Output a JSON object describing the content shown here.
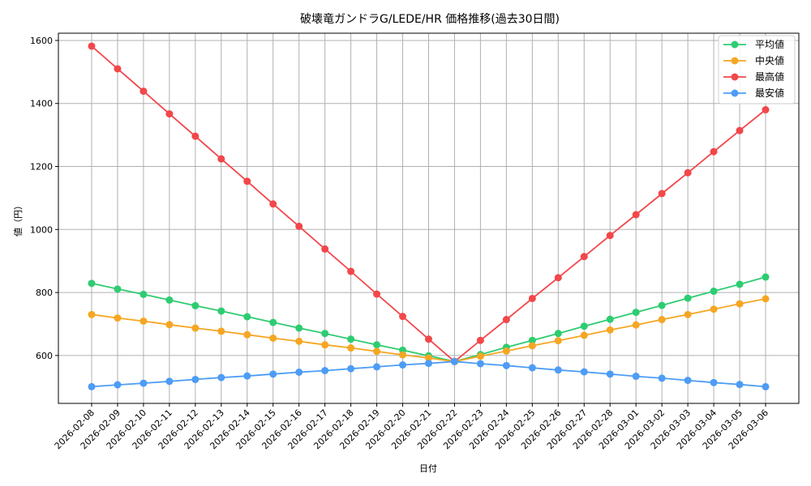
{
  "chart_data": {
    "type": "line",
    "title": "破壊竜ガンドラG/LEDE/HR 価格推移(過去30日間)",
    "xlabel": "日付",
    "ylabel": "値（円）",
    "ylim": [
      448,
      1623
    ],
    "yticks": [
      600,
      800,
      1000,
      1200,
      1400,
      1600
    ],
    "grid": true,
    "legend_position": "upper right",
    "x": [
      "2026-02-08",
      "2026-02-09",
      "2026-02-10",
      "2026-02-11",
      "2026-02-12",
      "2026-02-13",
      "2026-02-14",
      "2026-02-15",
      "2026-02-16",
      "2026-02-17",
      "2026-02-18",
      "2026-02-19",
      "2026-02-20",
      "2026-02-21",
      "2026-02-22",
      "2026-02-23",
      "2026-02-24",
      "2026-02-25",
      "2026-02-26",
      "2026-02-27",
      "2026-02-28",
      "2026-03-01",
      "2026-03-02",
      "2026-03-03",
      "2026-03-04",
      "2026-03-05",
      "2026-03-06"
    ],
    "series": [
      {
        "name": "平均値",
        "color": "#2ecc71",
        "values": [
          829,
          811,
          794,
          776,
          758,
          741,
          723,
          705,
          687,
          670,
          652,
          634,
          617,
          599,
          581,
          603,
          626,
          648,
          670,
          693,
          715,
          737,
          759,
          782,
          804,
          826,
          849
        ]
      },
      {
        "name": "中央値",
        "color": "#f5a623",
        "values": [
          730,
          719,
          709,
          698,
          687,
          677,
          666,
          655,
          645,
          634,
          624,
          613,
          602,
          592,
          581,
          598,
          614,
          631,
          647,
          664,
          681,
          697,
          714,
          730,
          747,
          764,
          780
        ]
      },
      {
        "name": "最高値",
        "color": "#f2474b",
        "values": [
          1582,
          1510,
          1439,
          1367,
          1296,
          1224,
          1153,
          1081,
          1010,
          938,
          867,
          795,
          724,
          652,
          581,
          648,
          714,
          781,
          847,
          914,
          981,
          1047,
          1114,
          1180,
          1247,
          1314,
          1380
        ]
      },
      {
        "name": "最安値",
        "color": "#4d9cf5",
        "values": [
          501,
          507,
          512,
          518,
          524,
          530,
          535,
          541,
          547,
          552,
          558,
          564,
          570,
          575,
          581,
          574,
          568,
          561,
          554,
          548,
          541,
          534,
          528,
          521,
          514,
          508,
          501
        ]
      }
    ]
  },
  "layout_colors": {
    "grid": "#b0b0b0",
    "axis": "#000000"
  }
}
